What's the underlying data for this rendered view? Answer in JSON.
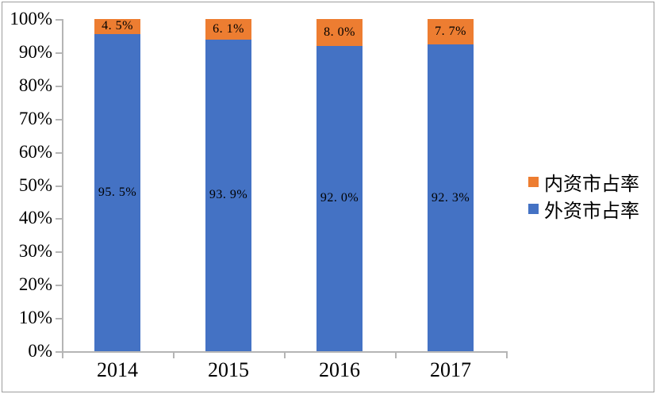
{
  "chart_data": {
    "type": "bar",
    "stacked": true,
    "percent_stacked": true,
    "title": "",
    "xlabel": "",
    "ylabel": "",
    "categories": [
      "2014",
      "2015",
      "2016",
      "2017"
    ],
    "series": [
      {
        "name": "外资市占率",
        "color": "#4472C4",
        "values": [
          95.5,
          93.9,
          92.0,
          92.3
        ],
        "labels": [
          "95. 5%",
          "93. 9%",
          "92. 0%",
          "92. 3%"
        ]
      },
      {
        "name": "内资市占率",
        "color": "#ED7D31",
        "values": [
          4.5,
          6.1,
          8.0,
          7.7
        ],
        "labels": [
          "4. 5%",
          "6. 1%",
          "8. 0%",
          "7. 7%"
        ]
      }
    ],
    "ylim": [
      0,
      100
    ],
    "ytick_step": 10,
    "ytick_labels": [
      "0%",
      "10%",
      "20%",
      "30%",
      "40%",
      "50%",
      "60%",
      "70%",
      "80%",
      "90%",
      "100%"
    ],
    "grid": false,
    "legend_position": "right",
    "legend": [
      {
        "label": "内资市占率",
        "color": "#ED7D31"
      },
      {
        "label": "外资市占率",
        "color": "#4472C4"
      }
    ]
  },
  "colors": {
    "background": "#ffffff",
    "border": "#9d9d9d",
    "axis": "#b5b5b5",
    "label_text": "#000000",
    "series_blue": "#4472C4",
    "series_orange": "#ED7D31"
  }
}
